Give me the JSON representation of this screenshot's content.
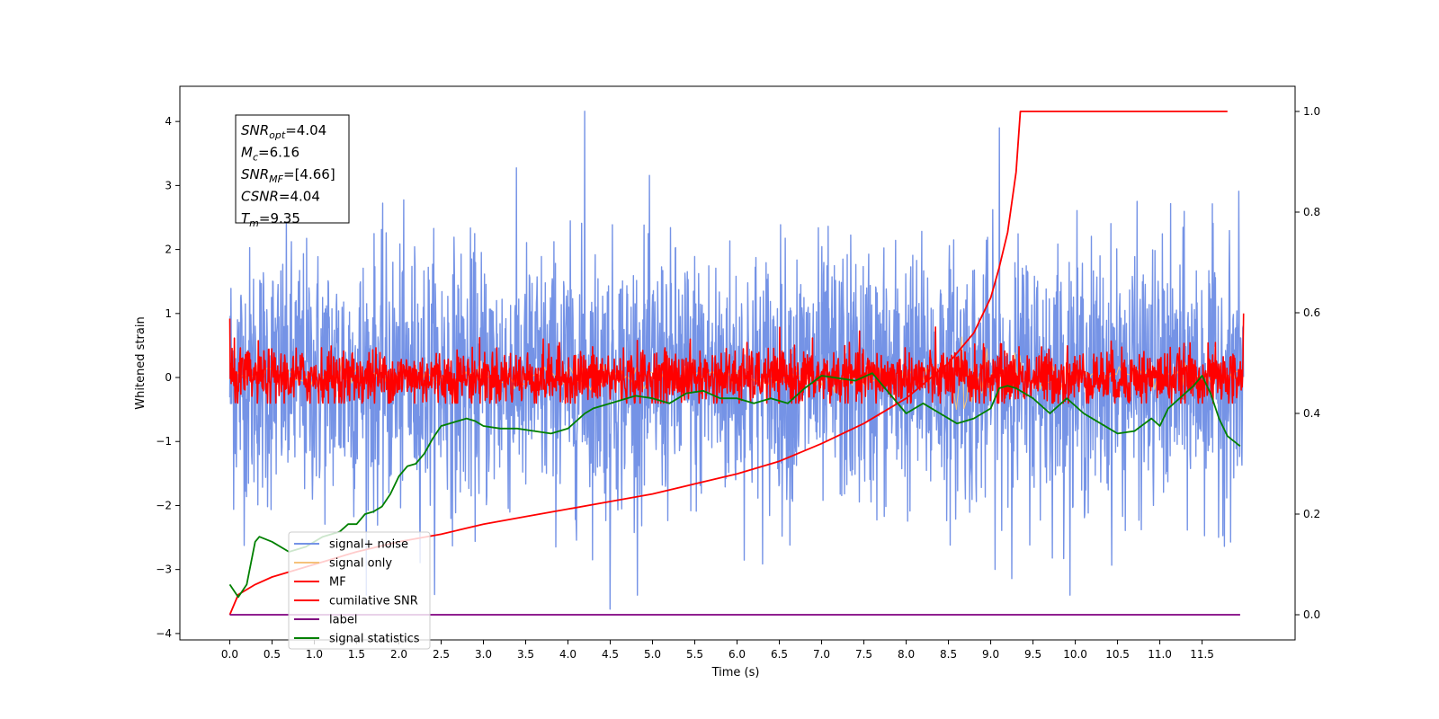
{
  "chart_data": {
    "type": "line",
    "title": "",
    "xlabel": "Time (s)",
    "ylabel": "Whitened strain",
    "xlim": [
      -0.59,
      12.6
    ],
    "ylim": [
      -4.1,
      4.55
    ],
    "y2lim": [
      -0.05,
      1.05
    ],
    "x_ticks": [
      "0.0",
      "0.5",
      "1.0",
      "1.5",
      "2.0",
      "2.5",
      "3.0",
      "3.5",
      "4.0",
      "4.5",
      "5.0",
      "5.5",
      "6.0",
      "6.5",
      "7.0",
      "7.5",
      "8.0",
      "8.5",
      "9.0",
      "9.5",
      "10.0",
      "10.5",
      "11.0",
      "11.5"
    ],
    "y_ticks": [
      "−4",
      "−3",
      "−2",
      "−1",
      "0",
      "1",
      "2",
      "3",
      "4"
    ],
    "y2_ticks": [
      "0.0",
      "0.2",
      "0.4",
      "0.6",
      "0.8",
      "1.0"
    ],
    "grid": false,
    "legend_position": "lower-left",
    "annotation": {
      "lines": [
        {
          "sym": "SNR",
          "sub": "opt",
          "value": "=4.04"
        },
        {
          "sym": "M",
          "sub": "c",
          "value": "=6.16"
        },
        {
          "sym": "SNR",
          "sub": "MF",
          "value": "=[4.66]"
        },
        {
          "sym": "CSNR",
          "sub": "",
          "value": "=4.04"
        },
        {
          "sym": "T",
          "sub": "m",
          "value": "=9.35"
        }
      ]
    },
    "series": [
      {
        "name": "signal+ noise",
        "color": "#7593e6",
        "axis": "left",
        "kind": "noise",
        "x_range": [
          0,
          11.99
        ],
        "center": 0,
        "spread": 1.0,
        "peaks": [
          4.16,
          -3.62
        ]
      },
      {
        "name": "signal only",
        "color": "#f5c27a",
        "axis": "left",
        "kind": "small",
        "x_range": [
          0,
          11.99
        ]
      },
      {
        "name": "MF",
        "color": "#ff0000",
        "axis": "left",
        "kind": "mf",
        "x_range": [
          0,
          11.99
        ],
        "start": 0.92,
        "end": 1.0
      },
      {
        "name": "cumilative SNR",
        "color": "#ff0000",
        "axis": "right",
        "x": [
          0,
          0.1,
          0.3,
          0.5,
          1,
          1.5,
          2,
          2.5,
          3,
          3.5,
          4,
          4.5,
          5,
          5.5,
          6,
          6.5,
          7,
          7.5,
          8,
          8.5,
          8.8,
          9.0,
          9.1,
          9.2,
          9.3,
          9.35,
          10,
          11,
          11.5,
          11.8
        ],
        "y": [
          0,
          0.04,
          0.06,
          0.075,
          0.1,
          0.125,
          0.145,
          0.16,
          0.18,
          0.195,
          0.21,
          0.225,
          0.24,
          0.26,
          0.28,
          0.305,
          0.34,
          0.38,
          0.43,
          0.5,
          0.56,
          0.63,
          0.69,
          0.76,
          0.88,
          1.0,
          1.0,
          1.0,
          1.0,
          1.0
        ]
      },
      {
        "name": "label",
        "color": "#800080",
        "axis": "right",
        "x": [
          0,
          11.95
        ],
        "y": [
          0.0,
          0.0
        ]
      },
      {
        "name": "signal statistics",
        "color": "#008000",
        "axis": "right",
        "x": [
          0,
          0.1,
          0.2,
          0.3,
          0.35,
          0.5,
          0.7,
          0.9,
          1.1,
          1.3,
          1.4,
          1.5,
          1.6,
          1.7,
          1.8,
          1.9,
          2.0,
          2.1,
          2.2,
          2.3,
          2.4,
          2.5,
          2.6,
          2.8,
          2.9,
          3.0,
          3.2,
          3.4,
          3.6,
          3.8,
          4.0,
          4.2,
          4.3,
          4.4,
          4.6,
          4.8,
          5.0,
          5.2,
          5.4,
          5.6,
          5.8,
          6.0,
          6.2,
          6.4,
          6.6,
          6.8,
          7.0,
          7.2,
          7.4,
          7.6,
          7.8,
          8.0,
          8.2,
          8.4,
          8.6,
          8.8,
          9.0,
          9.1,
          9.2,
          9.3,
          9.4,
          9.5,
          9.7,
          9.9,
          10.1,
          10.3,
          10.5,
          10.7,
          10.9,
          11.0,
          11.1,
          11.3,
          11.4,
          11.5,
          11.6,
          11.7,
          11.8,
          11.95
        ],
        "y": [
          0.06,
          0.035,
          0.06,
          0.145,
          0.155,
          0.145,
          0.125,
          0.135,
          0.155,
          0.165,
          0.18,
          0.18,
          0.2,
          0.205,
          0.215,
          0.24,
          0.275,
          0.295,
          0.3,
          0.32,
          0.35,
          0.375,
          0.38,
          0.39,
          0.385,
          0.375,
          0.37,
          0.37,
          0.365,
          0.36,
          0.37,
          0.4,
          0.41,
          0.415,
          0.425,
          0.435,
          0.43,
          0.42,
          0.44,
          0.445,
          0.43,
          0.43,
          0.42,
          0.43,
          0.42,
          0.45,
          0.475,
          0.47,
          0.465,
          0.48,
          0.44,
          0.4,
          0.42,
          0.4,
          0.38,
          0.39,
          0.41,
          0.45,
          0.455,
          0.45,
          0.44,
          0.43,
          0.4,
          0.43,
          0.4,
          0.38,
          0.36,
          0.365,
          0.39,
          0.375,
          0.41,
          0.44,
          0.455,
          0.475,
          0.44,
          0.39,
          0.355,
          0.335
        ]
      }
    ]
  }
}
